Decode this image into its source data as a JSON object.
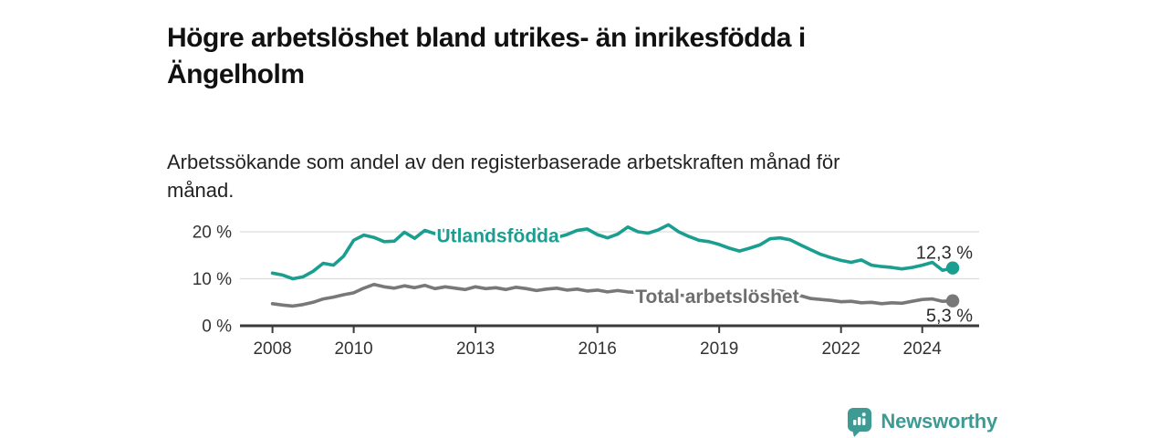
{
  "header": {
    "title_lines": [
      "Högre arbetslöshet bland utrikes- än inrikesfödda i",
      "Ängelholm"
    ],
    "subtitle_lines": [
      "Arbetssökande som andel av den registerbaserade arbetskraften månad för",
      "månad."
    ]
  },
  "chart_data": {
    "type": "line",
    "title": "Högre arbetslöshet bland utrikes- än inrikesfödda i Ängelholm",
    "subtitle": "Arbetssökande som andel av den registerbaserade arbetskraften månad för månad.",
    "unit": "%",
    "grid": "horizontal",
    "legend_position": "inline-on-line",
    "xlim": [
      2007.2,
      2025.4
    ],
    "ylim": [
      0,
      23.7
    ],
    "x": [
      2008.0,
      2008.25,
      2008.5,
      2008.75,
      2009.0,
      2009.25,
      2009.5,
      2009.75,
      2010.0,
      2010.25,
      2010.5,
      2010.75,
      2011.0,
      2011.25,
      2011.5,
      2011.75,
      2012.0,
      2012.25,
      2012.5,
      2012.75,
      2013.0,
      2013.25,
      2013.5,
      2013.75,
      2014.0,
      2014.25,
      2014.5,
      2014.75,
      2015.0,
      2015.25,
      2015.5,
      2015.75,
      2016.0,
      2016.25,
      2016.5,
      2016.75,
      2017.0,
      2017.25,
      2017.5,
      2017.75,
      2018.0,
      2018.25,
      2018.5,
      2018.75,
      2019.0,
      2019.25,
      2019.5,
      2019.75,
      2020.0,
      2020.25,
      2020.5,
      2020.75,
      2021.0,
      2021.25,
      2021.5,
      2021.75,
      2022.0,
      2022.25,
      2022.5,
      2022.75,
      2023.0,
      2023.25,
      2023.5,
      2023.75,
      2024.0,
      2024.25,
      2024.5,
      2024.75
    ],
    "xticks": [
      {
        "value": 2008,
        "label": "2008"
      },
      {
        "value": 2010,
        "label": "2010"
      },
      {
        "value": 2013,
        "label": "2013"
      },
      {
        "value": 2016,
        "label": "2016"
      },
      {
        "value": 2019,
        "label": "2019"
      },
      {
        "value": 2022,
        "label": "2022"
      },
      {
        "value": 2024,
        "label": "2024"
      }
    ],
    "yticks": [
      {
        "value": 0,
        "label": "0 %"
      },
      {
        "value": 10,
        "label": "10 %"
      },
      {
        "value": 20,
        "label": "20 %"
      }
    ],
    "series": [
      {
        "name": "Utlandsfödda",
        "color": "#1A9E8F",
        "label_at": {
          "x": 2013.55,
          "y": 19.1
        },
        "end_label": "12,3 %",
        "final_value": 12.3,
        "values": [
          11.2,
          10.8,
          10.0,
          10.4,
          11.6,
          13.3,
          12.9,
          14.8,
          18.2,
          19.3,
          18.8,
          17.9,
          18.0,
          19.9,
          18.6,
          20.3,
          19.6,
          20.4,
          19.3,
          19.9,
          19.4,
          20.1,
          19.2,
          19.8,
          20.3,
          19.6,
          20.8,
          19.2,
          18.8,
          19.4,
          20.3,
          20.6,
          19.4,
          18.7,
          19.5,
          21.0,
          20.0,
          19.7,
          20.4,
          21.5,
          20.0,
          19.0,
          18.2,
          17.9,
          17.3,
          16.5,
          15.9,
          16.5,
          17.2,
          18.5,
          18.7,
          18.3,
          17.2,
          16.2,
          15.2,
          14.5,
          13.9,
          13.5,
          14.0,
          12.9,
          12.6,
          12.4,
          12.1,
          12.4,
          12.9,
          13.5,
          11.8,
          12.3
        ]
      },
      {
        "name": "Total arbetslöshet",
        "color": "#787878",
        "label_color": "#6E6E6E",
        "label_at": {
          "x": 2018.95,
          "y": 6.2
        },
        "end_label": "5,3 %",
        "final_value": 5.3,
        "values": [
          4.7,
          4.4,
          4.2,
          4.5,
          5.0,
          5.7,
          6.1,
          6.6,
          7.0,
          8.0,
          8.8,
          8.3,
          8.0,
          8.5,
          8.1,
          8.6,
          7.9,
          8.3,
          8.0,
          7.7,
          8.3,
          7.9,
          8.1,
          7.7,
          8.2,
          7.9,
          7.5,
          7.8,
          8.0,
          7.6,
          7.8,
          7.4,
          7.6,
          7.2,
          7.5,
          7.2,
          7.1,
          6.9,
          6.7,
          6.6,
          6.5,
          6.4,
          6.2,
          6.1,
          6.2,
          6.0,
          5.9,
          6.0,
          6.3,
          7.2,
          7.4,
          7.0,
          6.4,
          5.8,
          5.6,
          5.4,
          5.1,
          5.2,
          4.9,
          5.0,
          4.7,
          4.9,
          4.8,
          5.2,
          5.6,
          5.7,
          5.2,
          5.3
        ]
      }
    ],
    "colors": {
      "grid": "#DCDCDC",
      "axis": "#3A3A3A",
      "tick_label": "#333333",
      "value_label": "#2B2B2B"
    }
  },
  "footer": {
    "brand": "Newsworthy",
    "brand_color": "#3D9B94",
    "logo_icon": "bar-chart-speech-bubble-icon"
  }
}
